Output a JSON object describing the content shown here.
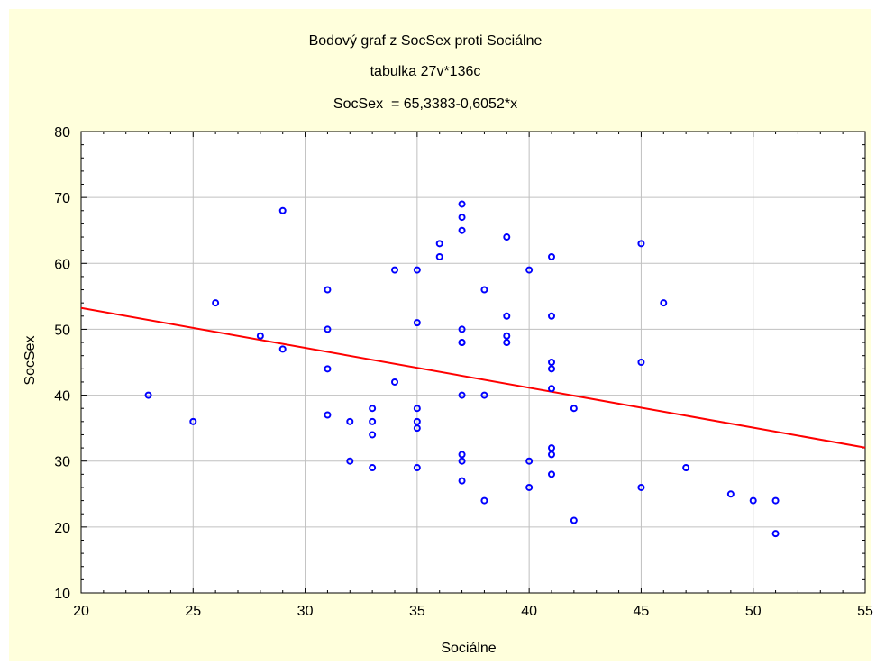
{
  "chart_data": {
    "type": "scatter",
    "title": "Bodový graf z SocSex proti Sociálne",
    "subtitle": "tabulka 27v*136c",
    "equation": "SocSex  = 65,3383-0,6052*x",
    "xlabel": "Sociálne",
    "ylabel": "SocSex",
    "xlim": [
      20,
      55
    ],
    "ylim": [
      10,
      80
    ],
    "xticks": [
      20,
      25,
      30,
      35,
      40,
      45,
      50,
      55
    ],
    "yticks": [
      10,
      20,
      30,
      40,
      50,
      60,
      70,
      80
    ],
    "grid": true,
    "legend": "none",
    "points": [
      [
        23,
        40
      ],
      [
        25,
        36
      ],
      [
        26,
        54
      ],
      [
        28,
        49
      ],
      [
        29,
        68
      ],
      [
        29,
        47
      ],
      [
        31,
        56
      ],
      [
        31,
        50
      ],
      [
        31,
        44
      ],
      [
        31,
        37
      ],
      [
        32,
        36
      ],
      [
        32,
        30
      ],
      [
        33,
        38
      ],
      [
        33,
        36
      ],
      [
        33,
        34
      ],
      [
        33,
        29
      ],
      [
        34,
        59
      ],
      [
        34,
        42
      ],
      [
        35,
        59
      ],
      [
        35,
        51
      ],
      [
        35,
        38
      ],
      [
        35,
        36
      ],
      [
        35,
        35
      ],
      [
        35,
        29
      ],
      [
        36,
        63
      ],
      [
        36,
        61
      ],
      [
        37,
        69
      ],
      [
        37,
        67
      ],
      [
        37,
        65
      ],
      [
        37,
        50
      ],
      [
        37,
        48
      ],
      [
        37,
        48
      ],
      [
        37,
        40
      ],
      [
        37,
        31
      ],
      [
        37,
        30
      ],
      [
        37,
        27
      ],
      [
        38,
        56
      ],
      [
        38,
        40
      ],
      [
        38,
        24
      ],
      [
        39,
        64
      ],
      [
        39,
        52
      ],
      [
        39,
        49
      ],
      [
        39,
        48
      ],
      [
        40,
        59
      ],
      [
        40,
        30
      ],
      [
        40,
        26
      ],
      [
        41,
        61
      ],
      [
        41,
        52
      ],
      [
        41,
        45
      ],
      [
        41,
        44
      ],
      [
        41,
        41
      ],
      [
        41,
        32
      ],
      [
        41,
        31
      ],
      [
        41,
        28
      ],
      [
        42,
        38
      ],
      [
        42,
        21
      ],
      [
        45,
        63
      ],
      [
        45,
        45
      ],
      [
        45,
        26
      ],
      [
        46,
        54
      ],
      [
        47,
        29
      ],
      [
        49,
        25
      ],
      [
        50,
        24
      ],
      [
        51,
        24
      ],
      [
        51,
        19
      ]
    ],
    "regression": {
      "intercept": 65.3383,
      "slope": -0.6052
    },
    "colors": {
      "background": "#ffffdc",
      "plot_background": "#ffffff",
      "points": "#0000ff",
      "regression_line": "#ff0000",
      "grid": "#c0c0c0",
      "axis": "#000000"
    }
  }
}
